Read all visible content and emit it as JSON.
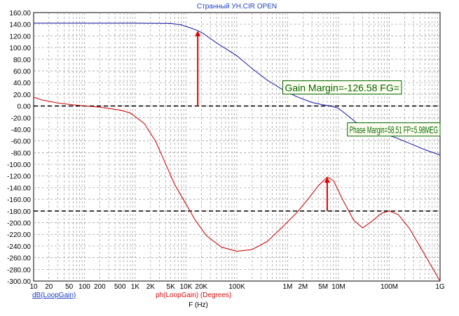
{
  "colors": {
    "background": "#ffffff",
    "grid": "#999999",
    "axis_text": "#000000",
    "title": "#1f3fbf",
    "gain_series": "#2a2ab0",
    "phase_series": "#cc1111",
    "arrow": "#e00000",
    "annotation_text": "#006400",
    "annotation_border": "#006400",
    "annotation_fill": "#fffff0"
  },
  "chart_data": {
    "type": "line",
    "title": "Странный УН.CIR OPEN",
    "xlabel": "F (Hz)",
    "ylabel": "",
    "xscale": "log",
    "xlim": [
      10,
      1000000000
    ],
    "ylim": [
      -300,
      160
    ],
    "grid": true,
    "xtick_labels": [
      {
        "value": 10,
        "label": "10"
      },
      {
        "value": 20,
        "label": "20"
      },
      {
        "value": 50,
        "label": "50"
      },
      {
        "value": 100,
        "label": "100"
      },
      {
        "value": 200,
        "label": "200"
      },
      {
        "value": 500,
        "label": "500"
      },
      {
        "value": 1000,
        "label": "1K"
      },
      {
        "value": 2000,
        "label": "2K"
      },
      {
        "value": 5000,
        "label": "5K"
      },
      {
        "value": 10000,
        "label": "10K"
      },
      {
        "value": 20000,
        "label": "20K"
      },
      {
        "value": 100000,
        "label": "100K"
      },
      {
        "value": 1000000,
        "label": "1M"
      },
      {
        "value": 2000000,
        "label": "2M"
      },
      {
        "value": 5000000,
        "label": "5M"
      },
      {
        "value": 10000000,
        "label": "10M"
      },
      {
        "value": 100000000,
        "label": "100M"
      },
      {
        "value": 1000000000,
        "label": "1G"
      }
    ],
    "ytick_labels": [
      {
        "value": 160,
        "label": "160.00"
      },
      {
        "value": 140,
        "label": "140.00"
      },
      {
        "value": 120,
        "label": "120.00"
      },
      {
        "value": 100,
        "label": "100.00"
      },
      {
        "value": 80,
        "label": "80.00"
      },
      {
        "value": 60,
        "label": "60.00"
      },
      {
        "value": 40,
        "label": "40.00"
      },
      {
        "value": 20,
        "label": "20.00"
      },
      {
        "value": 0,
        "label": "0.00"
      },
      {
        "value": -20,
        "label": "-20.00"
      },
      {
        "value": -40,
        "label": "-40.00"
      },
      {
        "value": -60,
        "label": "-60.00"
      },
      {
        "value": -80,
        "label": "-80.00"
      },
      {
        "value": -100,
        "label": "-100.00"
      },
      {
        "value": -120,
        "label": "-120.00"
      },
      {
        "value": -140,
        "label": "-140.00"
      },
      {
        "value": -160,
        "label": "-160.00"
      },
      {
        "value": -180,
        "label": "-180.00"
      },
      {
        "value": -200,
        "label": "-200.00"
      },
      {
        "value": -220,
        "label": "-220.00"
      },
      {
        "value": -240,
        "label": "-240.00"
      },
      {
        "value": -260,
        "label": "-260.00"
      },
      {
        "value": -280,
        "label": "-280.00"
      },
      {
        "value": -300,
        "label": "-300.00"
      }
    ],
    "series": [
      {
        "name": "dB(LoopGain)",
        "color": "#2a2ab0",
        "points": [
          [
            10,
            142
          ],
          [
            100,
            142
          ],
          [
            1000,
            142
          ],
          [
            5000,
            141.5
          ],
          [
            8000,
            139
          ],
          [
            12000,
            134
          ],
          [
            17000,
            129
          ],
          [
            22000,
            124
          ],
          [
            40000,
            108
          ],
          [
            100000,
            86
          ],
          [
            200000,
            64
          ],
          [
            400000,
            44
          ],
          [
            800000,
            28
          ],
          [
            1500000,
            16
          ],
          [
            3000000,
            6
          ],
          [
            5000000,
            2
          ],
          [
            7000000,
            0
          ],
          [
            10000000,
            -4
          ],
          [
            15000000,
            -16
          ],
          [
            25000000,
            -32
          ],
          [
            40000000,
            -41
          ],
          [
            70000000,
            -46
          ],
          [
            130000000,
            -54
          ],
          [
            250000000,
            -64
          ],
          [
            500000000,
            -75
          ],
          [
            1000000000,
            -84
          ]
        ]
      },
      {
        "name": "ph(LoopGain) (Degrees)",
        "color": "#cc1111",
        "points": [
          [
            10,
            15
          ],
          [
            15,
            10
          ],
          [
            30,
            5
          ],
          [
            60,
            2
          ],
          [
            100,
            0
          ],
          [
            200,
            -2
          ],
          [
            500,
            -7
          ],
          [
            800,
            -12
          ],
          [
            1500,
            -30
          ],
          [
            2500,
            -60
          ],
          [
            4000,
            -100
          ],
          [
            6000,
            -135
          ],
          [
            10000,
            -168
          ],
          [
            15000,
            -195
          ],
          [
            25000,
            -222
          ],
          [
            50000,
            -242
          ],
          [
            100000,
            -249
          ],
          [
            200000,
            -246
          ],
          [
            400000,
            -232
          ],
          [
            800000,
            -207
          ],
          [
            1500000,
            -183
          ],
          [
            2500000,
            -160
          ],
          [
            4000000,
            -137
          ],
          [
            6000000,
            -122
          ],
          [
            8000000,
            -128
          ],
          [
            12000000,
            -160
          ],
          [
            20000000,
            -196
          ],
          [
            30000000,
            -209
          ],
          [
            45000000,
            -198
          ],
          [
            70000000,
            -184
          ],
          [
            100000000,
            -180
          ],
          [
            150000000,
            -186
          ],
          [
            250000000,
            -210
          ],
          [
            500000000,
            -255
          ],
          [
            1000000000,
            -300
          ]
        ]
      }
    ],
    "reference_lines": [
      {
        "y": 0,
        "style": "dashed"
      },
      {
        "y": -180,
        "style": "dashed"
      }
    ],
    "markers": [
      {
        "x": 17000,
        "y_from": 0,
        "y_to": 129
      },
      {
        "x": 6000000,
        "y_from": -180,
        "y_to": -122
      }
    ],
    "annotations": [
      {
        "text": "Gain Margin=-126.58 FG=",
        "x": 800000,
        "y": 24
      },
      {
        "text": "Phase Margin=58.51 FP=5.98MEG",
        "x": 15000000,
        "y": -48
      }
    ],
    "legend": {
      "placement": "bottom-left",
      "entries": [
        {
          "label": "dB(LoopGain)",
          "color": "#1f3fbf"
        },
        {
          "label": "ph(LoopGain) (Degrees)",
          "color": "#cc1111"
        }
      ]
    }
  }
}
